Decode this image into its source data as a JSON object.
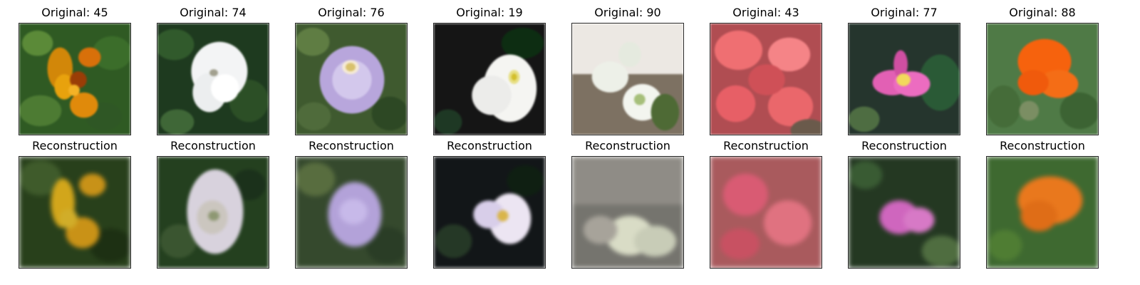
{
  "panels": [
    {
      "original_title": "Original: 45",
      "reconstruction_title": "Reconstruction",
      "original_bg": "#2f5a23",
      "recon_bg": "#28401b",
      "original_flower_color": "#e8a20d",
      "recon_flower_color": "#d5a318"
    },
    {
      "original_title": "Original: 74",
      "reconstruction_title": "Reconstruction",
      "original_bg": "#1e3a1f",
      "recon_bg": "#24401f",
      "original_flower_color": "#f3f4f5",
      "recon_flower_color": "#d8d2dd"
    },
    {
      "original_title": "Original: 76",
      "reconstruction_title": "Reconstruction",
      "original_bg": "#3f5a2f",
      "recon_bg": "#35492d",
      "original_flower_color": "#b8a6dc",
      "recon_flower_color": "#b3a2d9"
    },
    {
      "original_title": "Original: 19",
      "reconstruction_title": "Reconstruction",
      "original_bg": "#151515",
      "recon_bg": "#121618",
      "original_flower_color": "#f5f5f2",
      "recon_flower_color": "#ece5f2"
    },
    {
      "original_title": "Original: 90",
      "reconstruction_title": "Reconstruction",
      "original_bg": "#857c72",
      "recon_bg": "#75746e",
      "original_flower_color": "#edf0e8",
      "recon_flower_color": "#d9dcc6"
    },
    {
      "original_title": "Original: 43",
      "reconstruction_title": "Reconstruction",
      "original_bg": "#b04d52",
      "recon_bg": "#a95a5d",
      "original_flower_color": "#ef6f72",
      "recon_flower_color": "#d95b73"
    },
    {
      "original_title": "Original: 77",
      "reconstruction_title": "Reconstruction",
      "original_bg": "#25352d",
      "recon_bg": "#243822",
      "original_flower_color": "#e260b4",
      "recon_flower_color": "#cf66be"
    },
    {
      "original_title": "Original: 88",
      "reconstruction_title": "Reconstruction",
      "original_bg": "#4f7a46",
      "recon_bg": "#3e6930",
      "original_flower_color": "#f6620d",
      "recon_flower_color": "#e9781d"
    }
  ]
}
